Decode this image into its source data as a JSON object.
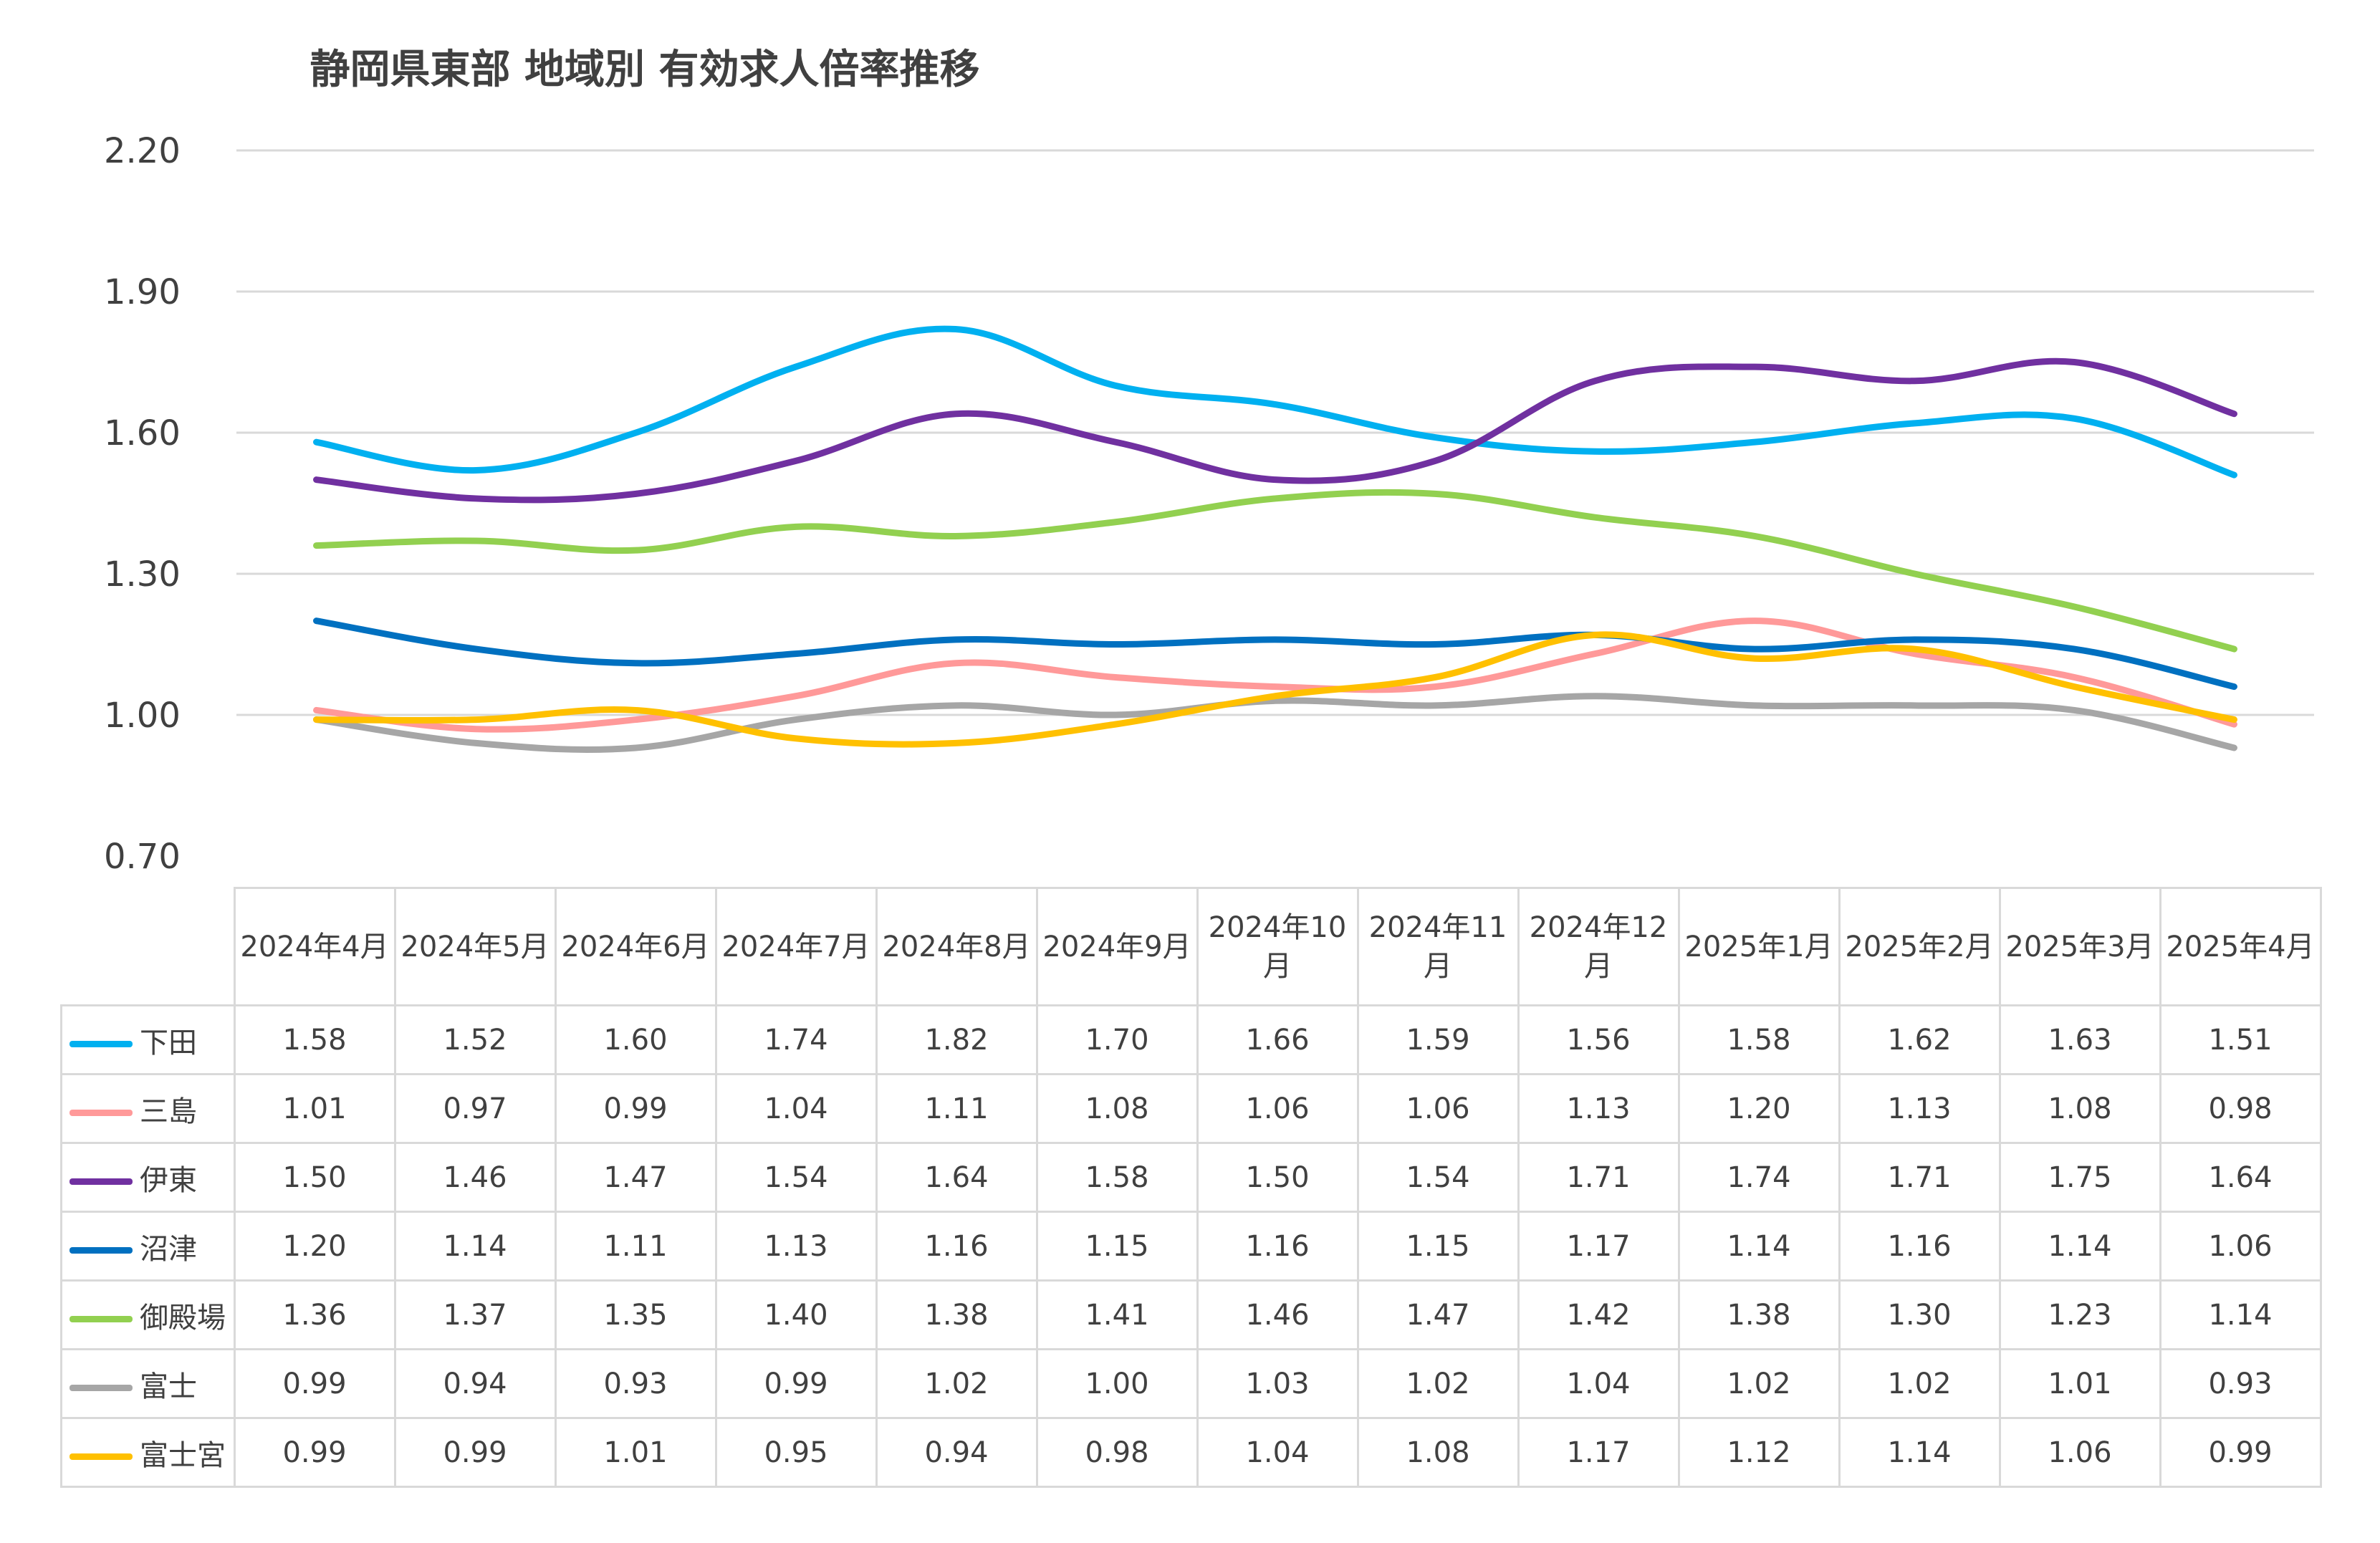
{
  "chart_data": {
    "type": "line",
    "title": "静岡県東部 地域別 有効求人倍率推移",
    "xlabel": "",
    "ylabel": "",
    "ylim": [
      0.7,
      2.2
    ],
    "yticks": [
      "0.70",
      "1.00",
      "1.30",
      "1.60",
      "1.90",
      "2.20"
    ],
    "grid": true,
    "legend": "table-left",
    "categories": [
      "2024年4月",
      "2024年5月",
      "2024年6月",
      "2024年7月",
      "2024年8月",
      "2024年9月",
      "2024年10月",
      "2024年11月",
      "2024年12月",
      "2025年1月",
      "2025年2月",
      "2025年3月",
      "2025年4月"
    ],
    "series": [
      {
        "name": "下田",
        "color": "#00b0f0",
        "values": [
          1.58,
          1.52,
          1.6,
          1.74,
          1.82,
          1.7,
          1.66,
          1.59,
          1.56,
          1.58,
          1.62,
          1.63,
          1.51
        ]
      },
      {
        "name": "三島",
        "color": "#ff9999",
        "values": [
          1.01,
          0.97,
          0.99,
          1.04,
          1.11,
          1.08,
          1.06,
          1.06,
          1.13,
          1.2,
          1.13,
          1.08,
          0.98
        ]
      },
      {
        "name": "伊東",
        "color": "#7030a0",
        "values": [
          1.5,
          1.46,
          1.47,
          1.54,
          1.64,
          1.58,
          1.5,
          1.54,
          1.71,
          1.74,
          1.71,
          1.75,
          1.64
        ]
      },
      {
        "name": "沼津",
        "color": "#0070c0",
        "values": [
          1.2,
          1.14,
          1.11,
          1.13,
          1.16,
          1.15,
          1.16,
          1.15,
          1.17,
          1.14,
          1.16,
          1.14,
          1.06
        ]
      },
      {
        "name": "御殿場",
        "color": "#92d050",
        "values": [
          1.36,
          1.37,
          1.35,
          1.4,
          1.38,
          1.41,
          1.46,
          1.47,
          1.42,
          1.38,
          1.3,
          1.23,
          1.14
        ]
      },
      {
        "name": "富士",
        "color": "#a6a6a6",
        "values": [
          0.99,
          0.94,
          0.93,
          0.99,
          1.02,
          1.0,
          1.03,
          1.02,
          1.04,
          1.02,
          1.02,
          1.01,
          0.93
        ]
      },
      {
        "name": "富士宮",
        "color": "#ffc000",
        "values": [
          0.99,
          0.99,
          1.01,
          0.95,
          0.94,
          0.98,
          1.04,
          1.08,
          1.17,
          1.12,
          1.14,
          1.06,
          0.99
        ]
      }
    ]
  }
}
